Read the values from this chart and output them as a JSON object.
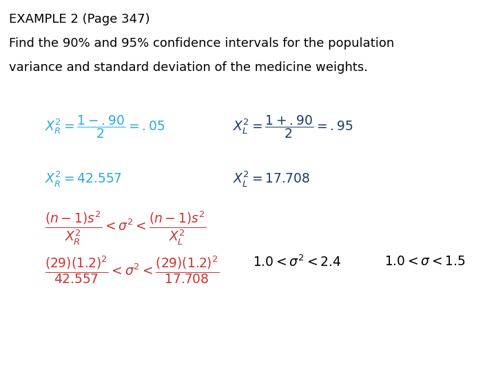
{
  "title_line1": "EXAMPLE 2 (Page 347)",
  "title_line2": "Find the 90% and 95% confidence intervals for the population",
  "title_line3": "variance and standard deviation of the medicine weights.",
  "bg_color": "#ffffff",
  "black": "#000000",
  "cyan_blue": "#29ABE2",
  "dark_blue": "#1B3A6B",
  "red": "#CC3333",
  "title_fontsize": 13.0,
  "math_fontsize": 13.5
}
